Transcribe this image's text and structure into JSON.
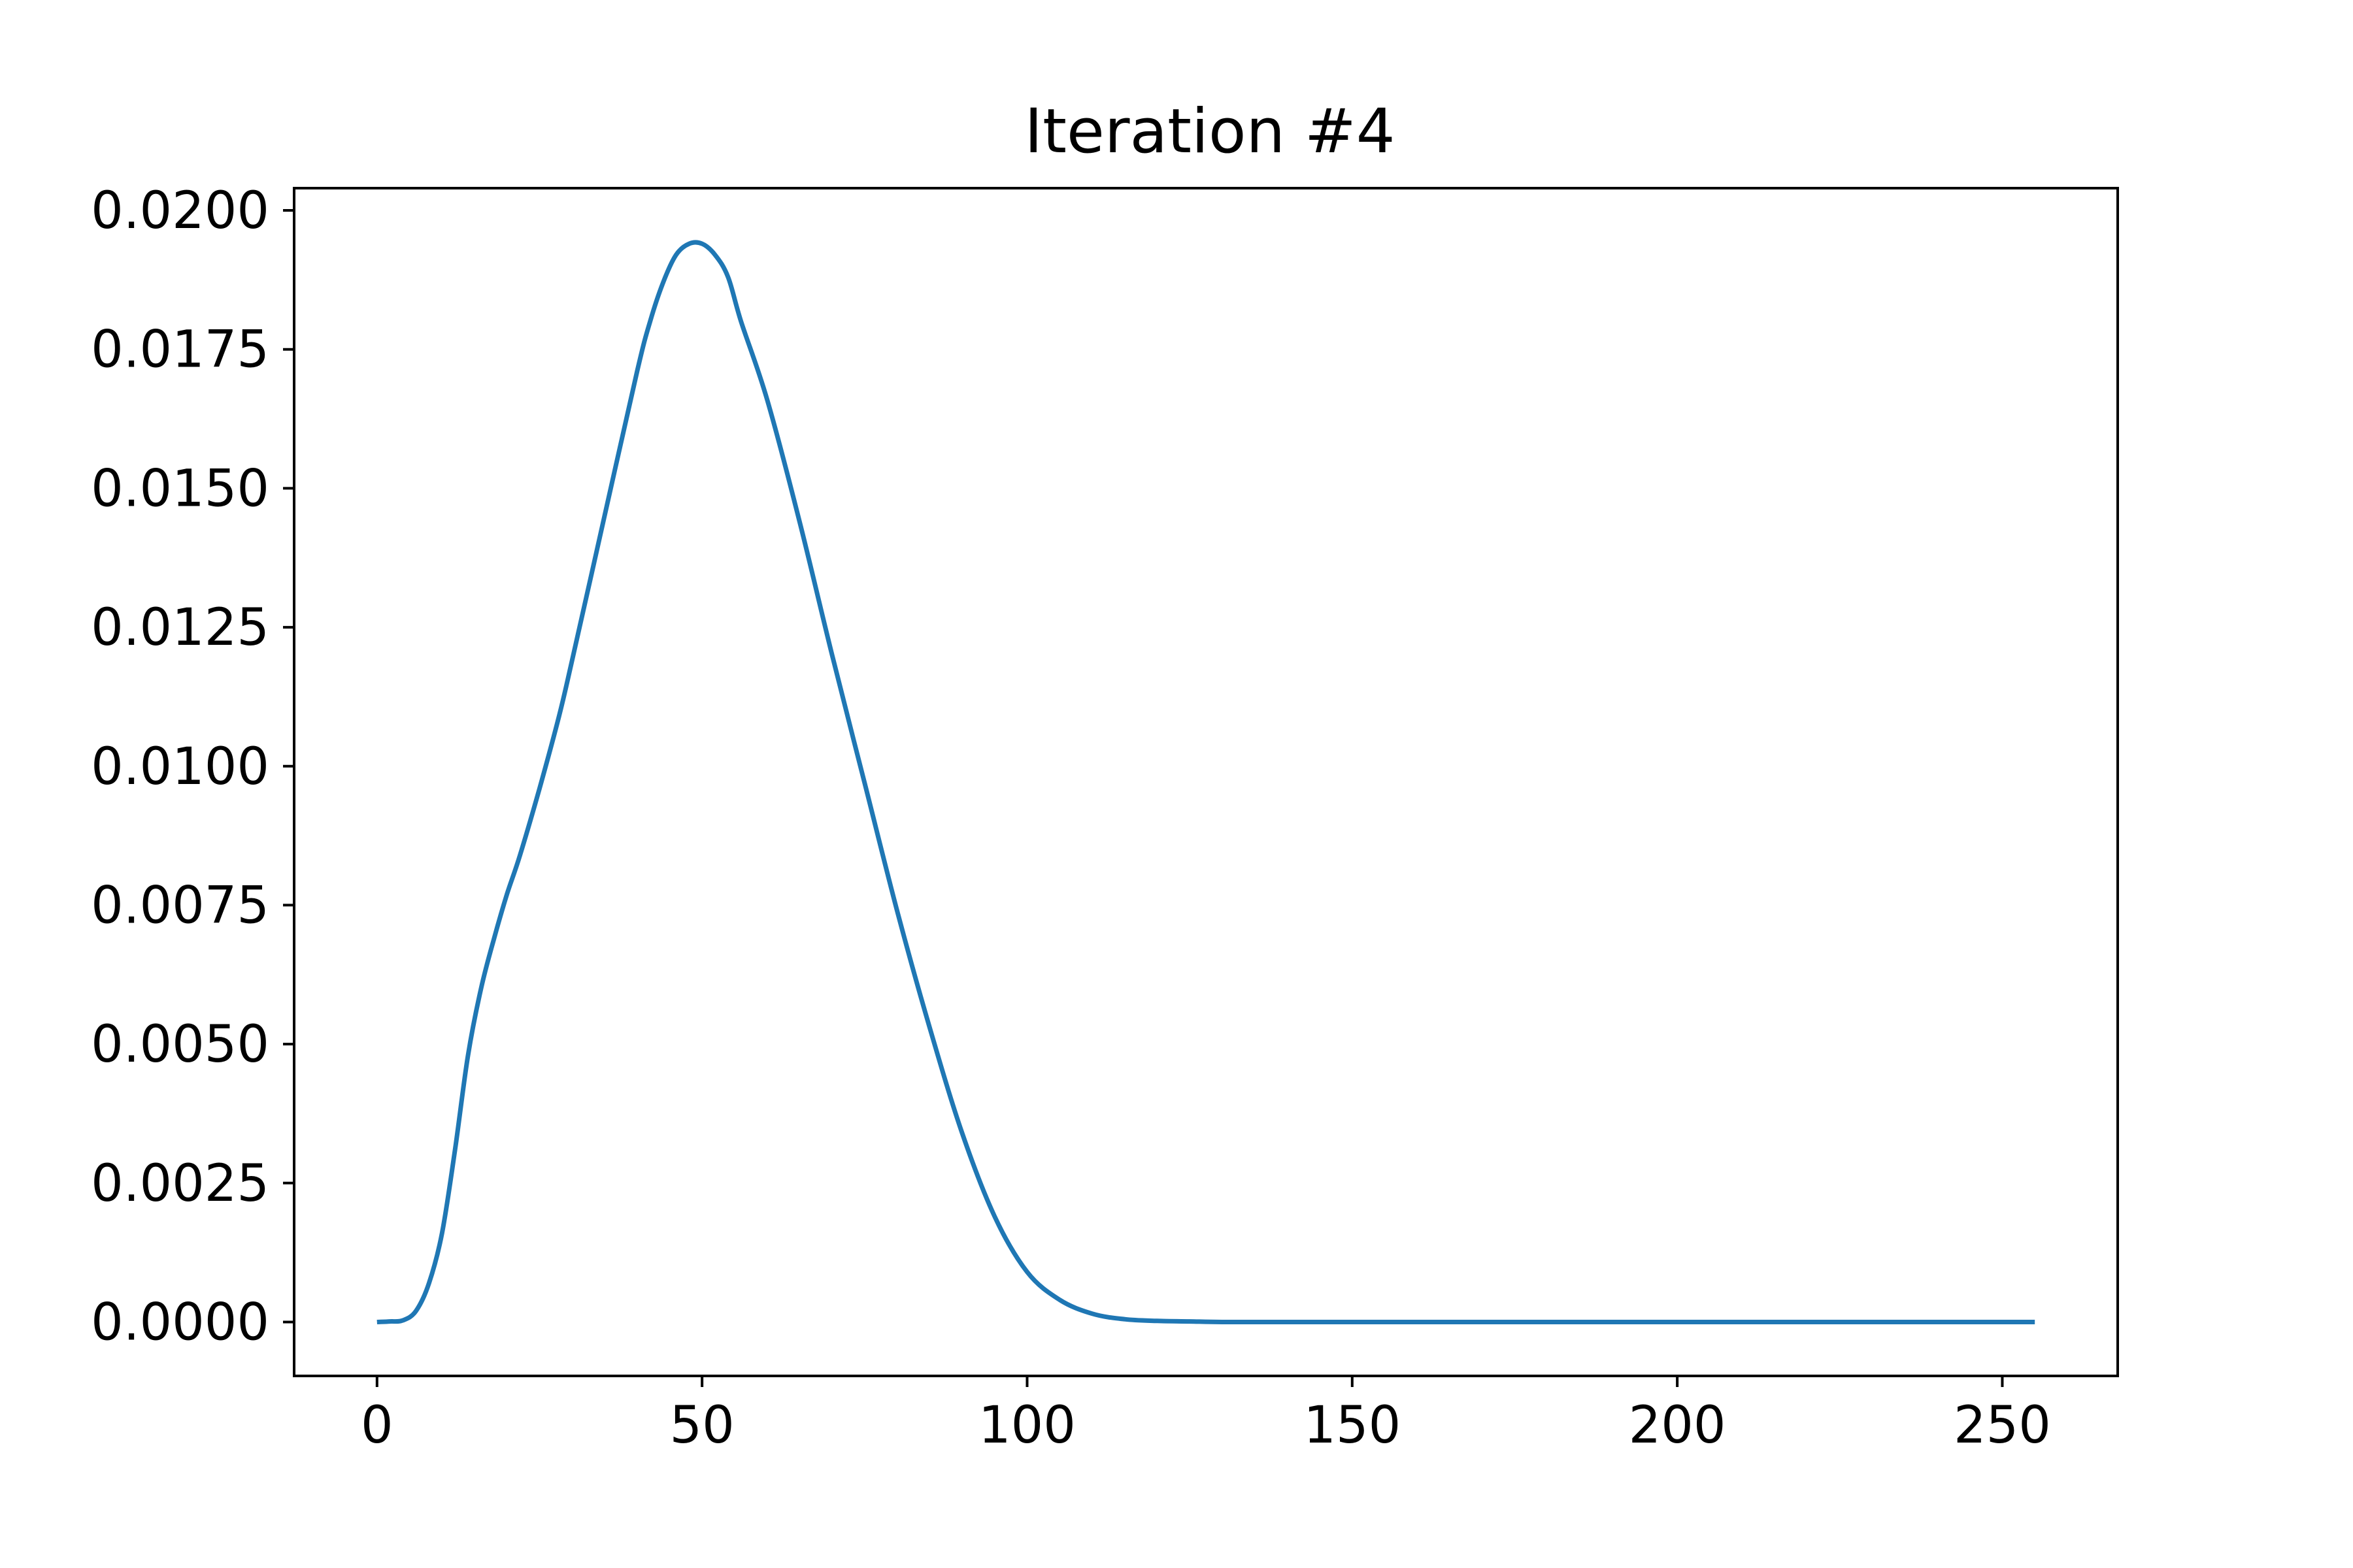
{
  "chart_data": {
    "type": "line",
    "title": "Iteration #4",
    "xlabel": "",
    "ylabel": "",
    "xlim": [
      -12.75,
      267.75
    ],
    "ylim": [
      -0.00097,
      0.0204
    ],
    "grid": false,
    "x_ticks": [
      0,
      50,
      100,
      150,
      200,
      250
    ],
    "x_tick_labels": [
      "0",
      "50",
      "100",
      "150",
      "200",
      "250"
    ],
    "y_ticks": [
      0,
      0.0025,
      0.005,
      0.0075,
      0.01,
      0.0125,
      0.015,
      0.0175,
      0.02
    ],
    "y_tick_labels": [
      "0.0000",
      "0.0025",
      "0.0050",
      "0.0075",
      "0.0100",
      "0.0125",
      "0.0150",
      "0.0175",
      "0.0200"
    ],
    "series": [
      {
        "color": "#1f77b4",
        "x": [
          0,
          2,
          4,
          6,
          8,
          10,
          12,
          14,
          16,
          18,
          20,
          22,
          25,
          28,
          30,
          35,
          40,
          42,
          44,
          46,
          48,
          50,
          52,
          54,
          56,
          60,
          65,
          70,
          75,
          80,
          85,
          90,
          95,
          100,
          105,
          110,
          115,
          120,
          125,
          130,
          140,
          160,
          200,
          255
        ],
        "y": [
          0.0,
          1e-05,
          3e-05,
          0.0002,
          0.0007,
          0.0016,
          0.0031,
          0.0048,
          0.006,
          0.0069,
          0.0077,
          0.0084,
          0.0096,
          0.0109,
          0.0119,
          0.0145,
          0.0171,
          0.018,
          0.0187,
          0.0192,
          0.0194,
          0.0194,
          0.0192,
          0.0188,
          0.018,
          0.0166,
          0.0144,
          0.012,
          0.0097,
          0.0074,
          0.0053,
          0.0034,
          0.0019,
          0.0009,
          0.0004,
          0.00015,
          5e-05,
          2e-05,
          1e-05,
          0.0,
          0.0,
          0.0,
          0.0,
          0.0
        ]
      }
    ]
  }
}
